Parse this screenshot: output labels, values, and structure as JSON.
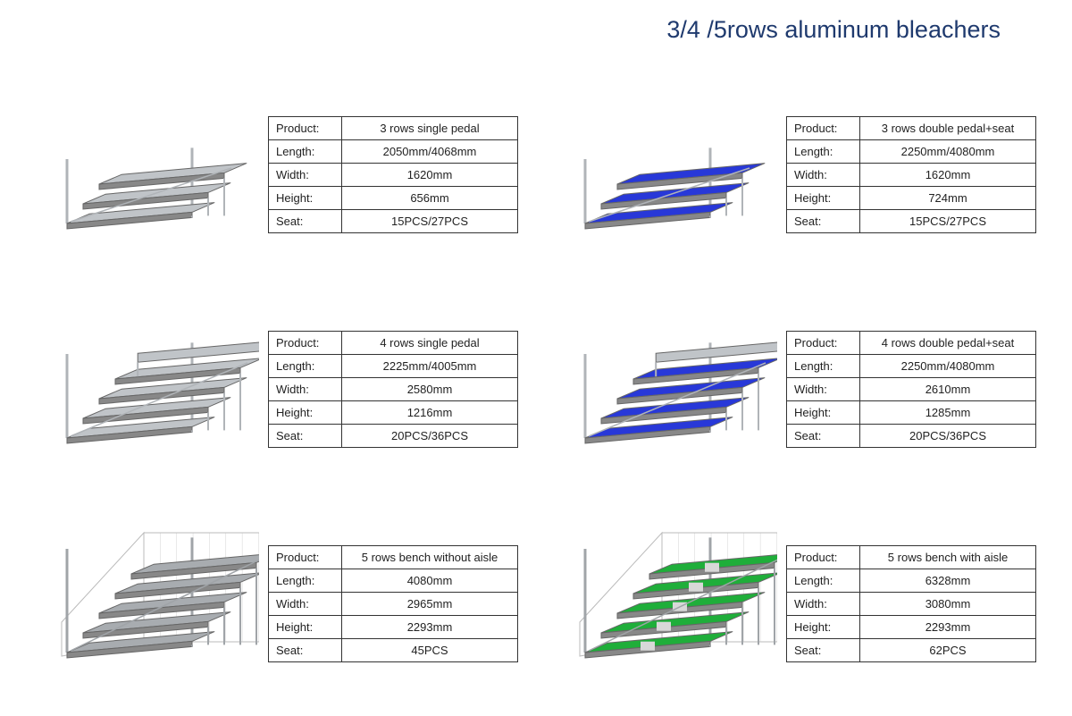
{
  "title": "3/4 /5rows aluminum bleachers",
  "labels": {
    "product": "Product:",
    "length": "Length:",
    "width": "Width:",
    "height": "Height:",
    "seat": "Seat:"
  },
  "items": [
    {
      "product": "3 rows single pedal",
      "length": "2050mm/4068mm",
      "width": "1620mm",
      "height": "656mm",
      "seat": "15PCS/27PCS",
      "seat_color": "#c0c4c8",
      "frame_color": "#b0b4b8",
      "rows": 3,
      "backrest": false,
      "fence": false
    },
    {
      "product": "3 rows double pedal+seat",
      "length": "2250mm/4080mm",
      "width": "1620mm",
      "height": "724mm",
      "seat": "15PCS/27PCS",
      "seat_color": "#2838d8",
      "frame_color": "#b0b4b8",
      "rows": 3,
      "backrest": false,
      "fence": false
    },
    {
      "product": "4 rows single pedal",
      "length": "2225mm/4005mm",
      "width": "2580mm",
      "height": "1216mm",
      "seat": "20PCS/36PCS",
      "seat_color": "#c0c4c8",
      "frame_color": "#b0b4b8",
      "rows": 4,
      "backrest": true,
      "fence": false
    },
    {
      "product": "4 rows double pedal+seat",
      "length": "2250mm/4080mm",
      "width": "2610mm",
      "height": "1285mm",
      "seat": "20PCS/36PCS",
      "seat_color": "#2838d8",
      "frame_color": "#b0b4b8",
      "rows": 4,
      "backrest": true,
      "fence": false
    },
    {
      "product": "5 rows bench without aisle",
      "length": "4080mm",
      "width": "2965mm",
      "height": "2293mm",
      "seat": "45PCS",
      "seat_color": "#a8acb0",
      "frame_color": "#a0a4a8",
      "rows": 5,
      "backrest": false,
      "fence": true
    },
    {
      "product": "5 rows bench with aisle",
      "length": "6328mm",
      "width": "3080mm",
      "height": "2293mm",
      "seat": "62PCS",
      "seat_color": "#1fae3a",
      "frame_color": "#a0a4a8",
      "rows": 5,
      "backrest": false,
      "fence": true,
      "aisle": true
    }
  ]
}
